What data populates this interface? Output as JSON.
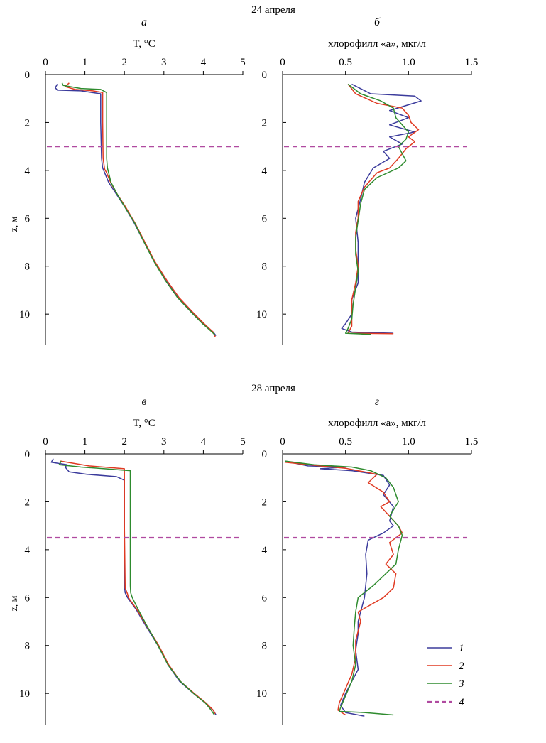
{
  "figure": {
    "dates": [
      "24 апреля",
      "28 апреля"
    ],
    "legend": [
      {
        "label": "1",
        "color": "#3b3b9c",
        "style": "solid"
      },
      {
        "label": "2",
        "color": "#e03a22",
        "style": "solid"
      },
      {
        "label": "3",
        "color": "#2e8b2e",
        "style": "solid"
      },
      {
        "label": "4",
        "color": "#b04aa0",
        "style": "dashed"
      }
    ]
  },
  "chart_data": [
    {
      "panel": "а",
      "type": "line",
      "date": "24 апреля",
      "xlabel": "T, °C",
      "ylabel": "z, м",
      "xlim": [
        0,
        5
      ],
      "ylim": [
        0,
        11.3
      ],
      "y_inverted": true,
      "xticks": [
        "0",
        "1",
        "2",
        "3",
        "4",
        "5"
      ],
      "yticks": [
        "0",
        "2",
        "4",
        "6",
        "8",
        "10"
      ],
      "hline_z": 3.0,
      "series": [
        {
          "name": "1",
          "color": "#3b3b9c",
          "x": [
            0.3,
            0.25,
            0.3,
            0.9,
            1.4,
            1.4,
            1.42,
            1.45,
            1.5,
            1.6,
            1.8,
            2.0,
            2.25,
            2.5,
            2.75,
            3.05,
            3.35,
            3.7,
            4.0,
            4.25,
            4.32
          ],
          "y": [
            0.4,
            0.55,
            0.65,
            0.68,
            0.8,
            2.0,
            3.5,
            3.9,
            4.1,
            4.5,
            5.0,
            5.5,
            6.2,
            7.0,
            7.8,
            8.6,
            9.3,
            9.9,
            10.4,
            10.75,
            10.9
          ]
        },
        {
          "name": "2",
          "color": "#e03a22",
          "x": [
            0.6,
            0.5,
            0.75,
            1.2,
            1.45,
            1.45,
            1.46,
            1.5,
            1.55,
            1.65,
            1.82,
            2.02,
            2.27,
            2.52,
            2.77,
            3.08,
            3.38,
            3.72,
            4.02,
            4.25,
            4.3
          ],
          "y": [
            0.35,
            0.5,
            0.62,
            0.68,
            0.75,
            2.0,
            3.5,
            3.95,
            4.1,
            4.5,
            5.0,
            5.5,
            6.2,
            7.0,
            7.8,
            8.6,
            9.3,
            9.9,
            10.4,
            10.75,
            10.95
          ]
        },
        {
          "name": "3",
          "color": "#2e8b2e",
          "x": [
            0.42,
            0.45,
            0.9,
            1.4,
            1.55,
            1.55,
            1.55,
            1.57,
            1.6,
            1.66,
            1.82,
            2.0,
            2.26,
            2.5,
            2.75,
            3.04,
            3.34,
            3.68,
            3.98,
            4.22,
            4.3
          ],
          "y": [
            0.35,
            0.45,
            0.58,
            0.62,
            0.75,
            2.0,
            3.5,
            3.9,
            4.1,
            4.5,
            5.0,
            5.5,
            6.2,
            7.0,
            7.8,
            8.6,
            9.3,
            9.9,
            10.4,
            10.75,
            10.88
          ]
        }
      ]
    },
    {
      "panel": "б",
      "type": "line",
      "date": "24 апреля",
      "xlabel": "хлорофилл «а», мкг/л",
      "ylabel": "",
      "xlim": [
        0,
        1.5
      ],
      "ylim": [
        0,
        11.3
      ],
      "y_inverted": true,
      "xticks": [
        "0",
        "0.5",
        "1.0",
        "1.5"
      ],
      "yticks": [
        "0",
        "2",
        "4",
        "6",
        "8",
        "10"
      ],
      "hline_z": 3.0,
      "series": [
        {
          "name": "1",
          "color": "#3b3b9c",
          "x": [
            0.55,
            0.7,
            1.05,
            1.1,
            0.85,
            1.0,
            0.85,
            1.05,
            0.85,
            0.95,
            0.8,
            0.85,
            0.72,
            0.65,
            0.62,
            0.58,
            0.6,
            0.6,
            0.6,
            0.55,
            0.55,
            0.5,
            0.47,
            0.55,
            0.88
          ],
          "y": [
            0.4,
            0.8,
            0.9,
            1.1,
            1.5,
            1.8,
            2.1,
            2.4,
            2.6,
            2.9,
            3.2,
            3.5,
            3.9,
            4.5,
            5.2,
            6.0,
            7.0,
            8.0,
            8.7,
            9.4,
            10.0,
            10.4,
            10.6,
            10.75,
            10.8
          ]
        },
        {
          "name": "2",
          "color": "#e03a22",
          "x": [
            0.52,
            0.58,
            0.75,
            0.95,
            1.0,
            1.02,
            1.08,
            1.0,
            1.05,
            0.98,
            0.92,
            0.85,
            0.75,
            0.65,
            0.6,
            0.6,
            0.58,
            0.58,
            0.6,
            0.58,
            0.55,
            0.55,
            0.55,
            0.52,
            0.88
          ],
          "y": [
            0.4,
            0.8,
            1.2,
            1.4,
            1.7,
            2.0,
            2.3,
            2.6,
            2.8,
            3.1,
            3.5,
            3.9,
            4.1,
            4.7,
            5.3,
            6.0,
            6.6,
            7.3,
            8.0,
            8.7,
            9.4,
            10.0,
            10.5,
            10.8,
            10.82
          ]
        },
        {
          "name": "3",
          "color": "#2e8b2e",
          "x": [
            0.52,
            0.62,
            0.78,
            0.88,
            0.9,
            0.95,
            1.0,
            0.98,
            0.92,
            0.95,
            0.98,
            0.92,
            0.75,
            0.65,
            0.62,
            0.6,
            0.58,
            0.58,
            0.6,
            0.58,
            0.56,
            0.55,
            0.52,
            0.5,
            0.7
          ],
          "y": [
            0.4,
            0.8,
            1.1,
            1.4,
            1.8,
            2.1,
            2.4,
            2.7,
            3.0,
            3.3,
            3.6,
            3.9,
            4.3,
            4.8,
            5.4,
            6.1,
            6.8,
            7.5,
            8.2,
            8.9,
            9.6,
            10.2,
            10.6,
            10.8,
            10.85
          ]
        }
      ]
    },
    {
      "panel": "в",
      "type": "line",
      "date": "28 апреля",
      "xlabel": "T, °C",
      "ylabel": "z, м",
      "xlim": [
        0,
        5
      ],
      "ylim": [
        0,
        11.3
      ],
      "y_inverted": true,
      "xticks": [
        "0",
        "1",
        "2",
        "3",
        "4",
        "5"
      ],
      "yticks": [
        "0",
        "2",
        "4",
        "6",
        "8",
        "10"
      ],
      "hline_z": 3.5,
      "series": [
        {
          "name": "1",
          "color": "#3b3b9c",
          "x": [
            0.2,
            0.15,
            0.55,
            0.5,
            0.6,
            1.05,
            1.8,
            2.0,
            2.0,
            2.0,
            2.02,
            2.08,
            2.3,
            2.55,
            2.85,
            3.1,
            3.4,
            3.75,
            4.05,
            4.25,
            4.32
          ],
          "y": [
            0.2,
            0.35,
            0.45,
            0.55,
            0.75,
            0.85,
            0.95,
            1.1,
            3.0,
            5.5,
            5.8,
            6.0,
            6.5,
            7.2,
            8.0,
            8.8,
            9.5,
            10.0,
            10.4,
            10.7,
            10.9
          ]
        },
        {
          "name": "2",
          "color": "#e03a22",
          "x": [
            0.38,
            1.1,
            2.0,
            2.0,
            2.0,
            2.02,
            2.08,
            2.1,
            2.32,
            2.57,
            2.87,
            3.12,
            3.42,
            3.77,
            4.07,
            4.25,
            4.3
          ],
          "y": [
            0.3,
            0.5,
            0.62,
            0.75,
            3.0,
            5.6,
            5.85,
            6.0,
            6.5,
            7.2,
            8.0,
            8.8,
            9.5,
            10.0,
            10.4,
            10.7,
            10.85
          ]
        },
        {
          "name": "3",
          "color": "#2e8b2e",
          "x": [
            0.4,
            0.35,
            0.9,
            1.5,
            2.15,
            2.15,
            2.15,
            2.16,
            2.2,
            2.35,
            2.58,
            2.85,
            3.1,
            3.42,
            3.75,
            4.05,
            4.2,
            4.28
          ],
          "y": [
            0.3,
            0.45,
            0.55,
            0.62,
            0.7,
            3.0,
            5.5,
            5.8,
            6.0,
            6.5,
            7.2,
            8.0,
            8.8,
            9.5,
            10.0,
            10.4,
            10.7,
            10.9
          ]
        }
      ]
    },
    {
      "panel": "г",
      "type": "line",
      "date": "28 апреля",
      "xlabel": "хлорофилл «а», мкг/л",
      "ylabel": "",
      "xlim": [
        0,
        1.5
      ],
      "ylim": [
        0,
        11.3
      ],
      "y_inverted": true,
      "xticks": [
        "0",
        "0.5",
        "1.0",
        "1.5"
      ],
      "yticks": [
        "0",
        "2",
        "4",
        "6",
        "8",
        "10"
      ],
      "hline_z": 3.5,
      "series": [
        {
          "name": "1",
          "color": "#3b3b9c",
          "x": [
            0.02,
            0.2,
            0.5,
            0.3,
            0.55,
            0.8,
            0.85,
            0.8,
            0.88,
            0.85,
            0.88,
            0.8,
            0.68,
            0.66,
            0.67,
            0.65,
            0.62,
            0.6,
            0.6,
            0.58,
            0.6,
            0.55,
            0.5,
            0.46,
            0.5,
            0.65
          ],
          "y": [
            0.3,
            0.5,
            0.55,
            0.62,
            0.7,
            0.9,
            1.3,
            1.7,
            2.2,
            2.8,
            3.0,
            3.3,
            3.6,
            4.2,
            5.0,
            6.0,
            6.6,
            7.0,
            7.5,
            8.2,
            9.0,
            9.5,
            10.0,
            10.5,
            10.8,
            10.95
          ]
        },
        {
          "name": "2",
          "color": "#e03a22",
          "x": [
            0.02,
            0.3,
            0.5,
            0.6,
            0.75,
            0.68,
            0.8,
            0.85,
            0.78,
            0.85,
            0.92,
            0.95,
            0.85,
            0.88,
            0.82,
            0.9,
            0.88,
            0.8,
            0.7,
            0.6,
            0.62,
            0.58,
            0.58,
            0.55,
            0.5,
            0.45,
            0.44,
            0.5
          ],
          "y": [
            0.35,
            0.5,
            0.6,
            0.7,
            0.85,
            1.2,
            1.6,
            2.0,
            2.2,
            2.6,
            3.0,
            3.3,
            3.7,
            4.2,
            4.6,
            5.0,
            5.6,
            6.0,
            6.3,
            6.6,
            7.0,
            7.8,
            8.5,
            9.2,
            9.8,
            10.4,
            10.7,
            10.9
          ]
        },
        {
          "name": "3",
          "color": "#2e8b2e",
          "x": [
            0.02,
            0.25,
            0.55,
            0.7,
            0.82,
            0.88,
            0.92,
            0.85,
            0.92,
            0.95,
            0.92,
            0.9,
            0.82,
            0.72,
            0.6,
            0.58,
            0.57,
            0.56,
            0.58,
            0.55,
            0.5,
            0.46,
            0.45,
            0.65,
            0.88
          ],
          "y": [
            0.3,
            0.45,
            0.55,
            0.7,
            1.0,
            1.4,
            2.0,
            2.6,
            3.0,
            3.4,
            4.0,
            4.6,
            5.0,
            5.5,
            6.0,
            6.6,
            7.2,
            8.0,
            8.8,
            9.5,
            10.1,
            10.6,
            10.75,
            10.8,
            10.9
          ]
        }
      ]
    }
  ]
}
